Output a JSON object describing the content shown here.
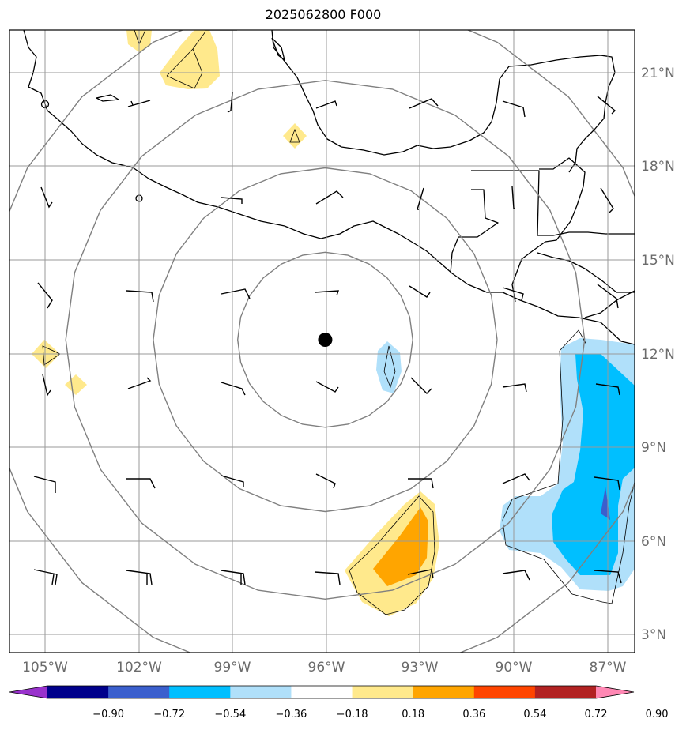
{
  "title": "2025062800 F000",
  "map": {
    "lon_range": [
      -106.2,
      -86.2
    ],
    "lat_range": [
      2.4,
      22.3
    ],
    "lat_ticks": [
      {
        "value": 3,
        "label": "3°N"
      },
      {
        "value": 6,
        "label": "6°N"
      },
      {
        "value": 9,
        "label": "9°N"
      },
      {
        "value": 12,
        "label": "12°N"
      },
      {
        "value": 15,
        "label": "15°N"
      },
      {
        "value": 18,
        "label": "18°N"
      },
      {
        "value": 21,
        "label": "21°N"
      }
    ],
    "lon_ticks": [
      {
        "value": -105,
        "label": "105°W"
      },
      {
        "value": -102,
        "label": "102°W"
      },
      {
        "value": -99,
        "label": "99°W"
      },
      {
        "value": -96,
        "label": "96°W"
      },
      {
        "value": -93,
        "label": "93°W"
      },
      {
        "value": -90,
        "label": "90°W"
      },
      {
        "value": -87,
        "label": "87°W"
      }
    ],
    "center_marker": {
      "lon": -96.1,
      "lat": 12.4
    },
    "range_rings_deg": [
      2.8,
      5.5,
      8.3,
      11.0
    ],
    "grid": true
  },
  "colorbar": {
    "colors": [
      "#9932cc",
      "#00008b",
      "#3b5fcd",
      "#00bfff",
      "#b0e0fa",
      "#ffffff",
      "#ffe98c",
      "#ffa500",
      "#ff4500",
      "#b22222",
      "#ff88b4"
    ],
    "labels": [
      "−0.90",
      "−0.72",
      "−0.54",
      "−0.36",
      "−0.18",
      "0.18",
      "0.36",
      "0.54",
      "0.72",
      "0.90"
    ],
    "extend": "both"
  }
}
